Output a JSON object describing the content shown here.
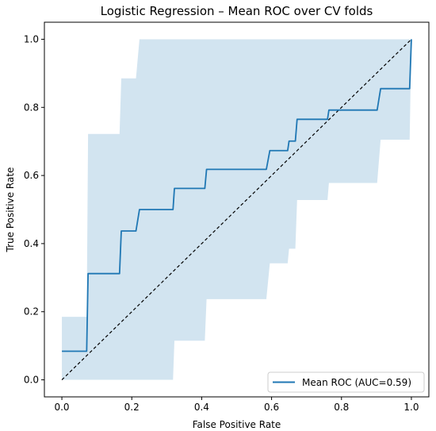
{
  "chart_data": {
    "type": "line",
    "title": "Logistic Regression – Mean ROC over CV folds",
    "xlabel": "False Positive Rate",
    "ylabel": "True Positive Rate",
    "xlim": [
      -0.05,
      1.05
    ],
    "ylim": [
      -0.05,
      1.05
    ],
    "xticks": [
      0.0,
      0.2,
      0.4,
      0.6,
      0.8,
      1.0
    ],
    "yticks": [
      0.0,
      0.2,
      0.4,
      0.6,
      0.8,
      1.0
    ],
    "xtick_labels": [
      "0.0",
      "0.2",
      "0.4",
      "0.6",
      "0.8",
      "1.0"
    ],
    "ytick_labels": [
      "0.0",
      "0.2",
      "0.4",
      "0.6",
      "0.8",
      "1.0"
    ],
    "grid": false,
    "legend_position": "lower-right",
    "series": [
      {
        "name": "Mean ROC (AUC=0.59)",
        "color": "#1f77b4",
        "x": [
          0.0,
          0.071,
          0.075,
          0.165,
          0.17,
          0.212,
          0.222,
          0.318,
          0.322,
          0.409,
          0.414,
          0.585,
          0.595,
          0.646,
          0.65,
          0.668,
          0.673,
          0.76,
          0.764,
          0.902,
          0.912,
          0.995,
          1.0
        ],
        "y": [
          0.084,
          0.084,
          0.312,
          0.312,
          0.437,
          0.437,
          0.5,
          0.5,
          0.562,
          0.562,
          0.618,
          0.618,
          0.673,
          0.673,
          0.701,
          0.701,
          0.765,
          0.765,
          0.792,
          0.792,
          0.855,
          0.855,
          1.0
        ]
      }
    ],
    "std_band": {
      "color": "#1f77b4",
      "opacity": 0.2,
      "x": [
        0.0,
        0.071,
        0.075,
        0.165,
        0.17,
        0.212,
        0.222,
        0.318,
        0.322,
        0.409,
        0.414,
        0.585,
        0.595,
        0.646,
        0.65,
        0.668,
        0.673,
        0.76,
        0.764,
        0.902,
        0.912,
        0.995,
        1.0
      ],
      "upper": [
        0.185,
        0.185,
        0.722,
        0.722,
        0.885,
        0.885,
        1.0,
        1.0,
        1.0,
        1.0,
        1.0,
        1.0,
        1.0,
        1.0,
        1.0,
        1.0,
        1.0,
        1.0,
        1.0,
        1.0,
        1.0,
        1.0,
        1.0
      ],
      "lower": [
        0.0,
        0.0,
        0.0,
        0.0,
        0.0,
        0.0,
        0.0,
        0.0,
        0.115,
        0.115,
        0.237,
        0.237,
        0.342,
        0.342,
        0.385,
        0.385,
        0.528,
        0.528,
        0.578,
        0.578,
        0.705,
        0.705,
        1.0
      ]
    },
    "reference_line": {
      "x": [
        0.0,
        1.0
      ],
      "y": [
        0.0,
        1.0
      ],
      "color": "#000000",
      "style": "dashed"
    }
  }
}
